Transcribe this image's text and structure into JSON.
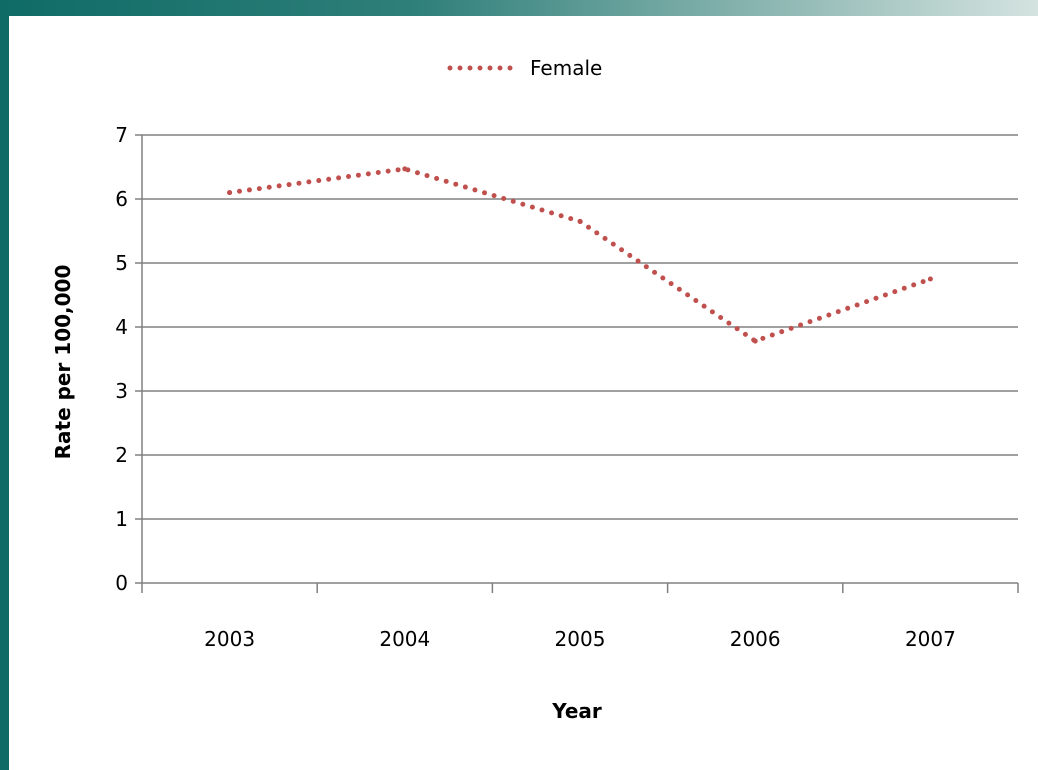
{
  "chart_data": {
    "type": "line",
    "categories": [
      "2003",
      "2004",
      "2005",
      "2006",
      "2007"
    ],
    "series": [
      {
        "name": "Female",
        "values": [
          6.1,
          6.47,
          5.65,
          3.78,
          4.75
        ],
        "color": "#c0504d",
        "line_style": "dotted"
      }
    ],
    "xlabel": "Year",
    "ylabel": "Rate per 100,000",
    "ylim": [
      0,
      7
    ],
    "yticks": [
      "0",
      "1",
      "2",
      "3",
      "4",
      "5",
      "6",
      "7"
    ],
    "grid": "horizontal",
    "legend_position": "top"
  },
  "colors": {
    "frame_accent": "#0f6b66",
    "gridline": "#808080"
  }
}
